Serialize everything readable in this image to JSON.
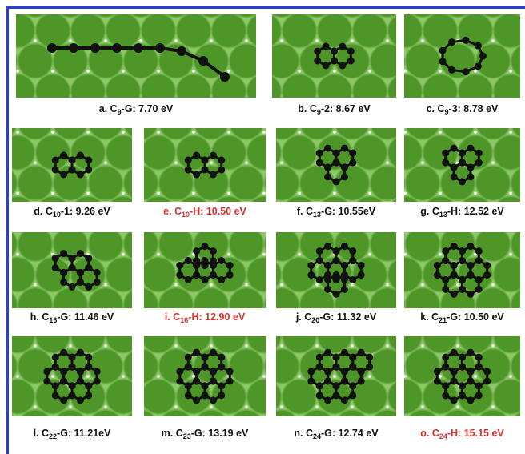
{
  "panels": [
    {
      "prefix": "a. C",
      "sub": "9",
      "suffix": "-G: 7.70 eV",
      "color": "#111111"
    },
    {
      "prefix": "b. C",
      "sub": "9",
      "suffix": "-2: 8.67 eV",
      "color": "#111111"
    },
    {
      "prefix": "c. C",
      "sub": "9",
      "suffix": "-3: 8.78 eV",
      "color": "#111111"
    },
    {
      "prefix": "d. C",
      "sub": "10",
      "suffix": "-1: 9.26 eV",
      "color": "#111111"
    },
    {
      "prefix": "e. C",
      "sub": "10",
      "suffix": "-H: 10.50 eV",
      "color": "#d8312b"
    },
    {
      "prefix": "f. C",
      "sub": "13",
      "suffix": "-G: 10.55eV",
      "color": "#111111"
    },
    {
      "prefix": "g. C",
      "sub": "13",
      "suffix": "-H: 12.52 eV",
      "color": "#111111"
    },
    {
      "prefix": "h. C",
      "sub": "16",
      "suffix": "-G: 11.46 eV",
      "color": "#111111"
    },
    {
      "prefix": "i. C",
      "sub": "16",
      "suffix": "-H: 12.90 eV",
      "color": "#d8312b"
    },
    {
      "prefix": "j. C",
      "sub": "20",
      "suffix": "-G: 11.32 eV",
      "color": "#111111"
    },
    {
      "prefix": "k. C",
      "sub": "21",
      "suffix": "-G: 10.50 eV",
      "color": "#111111"
    },
    {
      "prefix": "l. C",
      "sub": "22",
      "suffix": "-G: 11.21eV",
      "color": "#111111"
    },
    {
      "prefix": "m. C",
      "sub": "23",
      "suffix": "-G: 13.19 eV",
      "color": "#111111"
    },
    {
      "prefix": "n. C",
      "sub": "24",
      "suffix": "-G: 12.74 eV",
      "color": "#111111"
    },
    {
      "prefix": "o. C",
      "sub": "24",
      "suffix": "-H: 15.15 eV",
      "color": "#d8312b"
    }
  ]
}
